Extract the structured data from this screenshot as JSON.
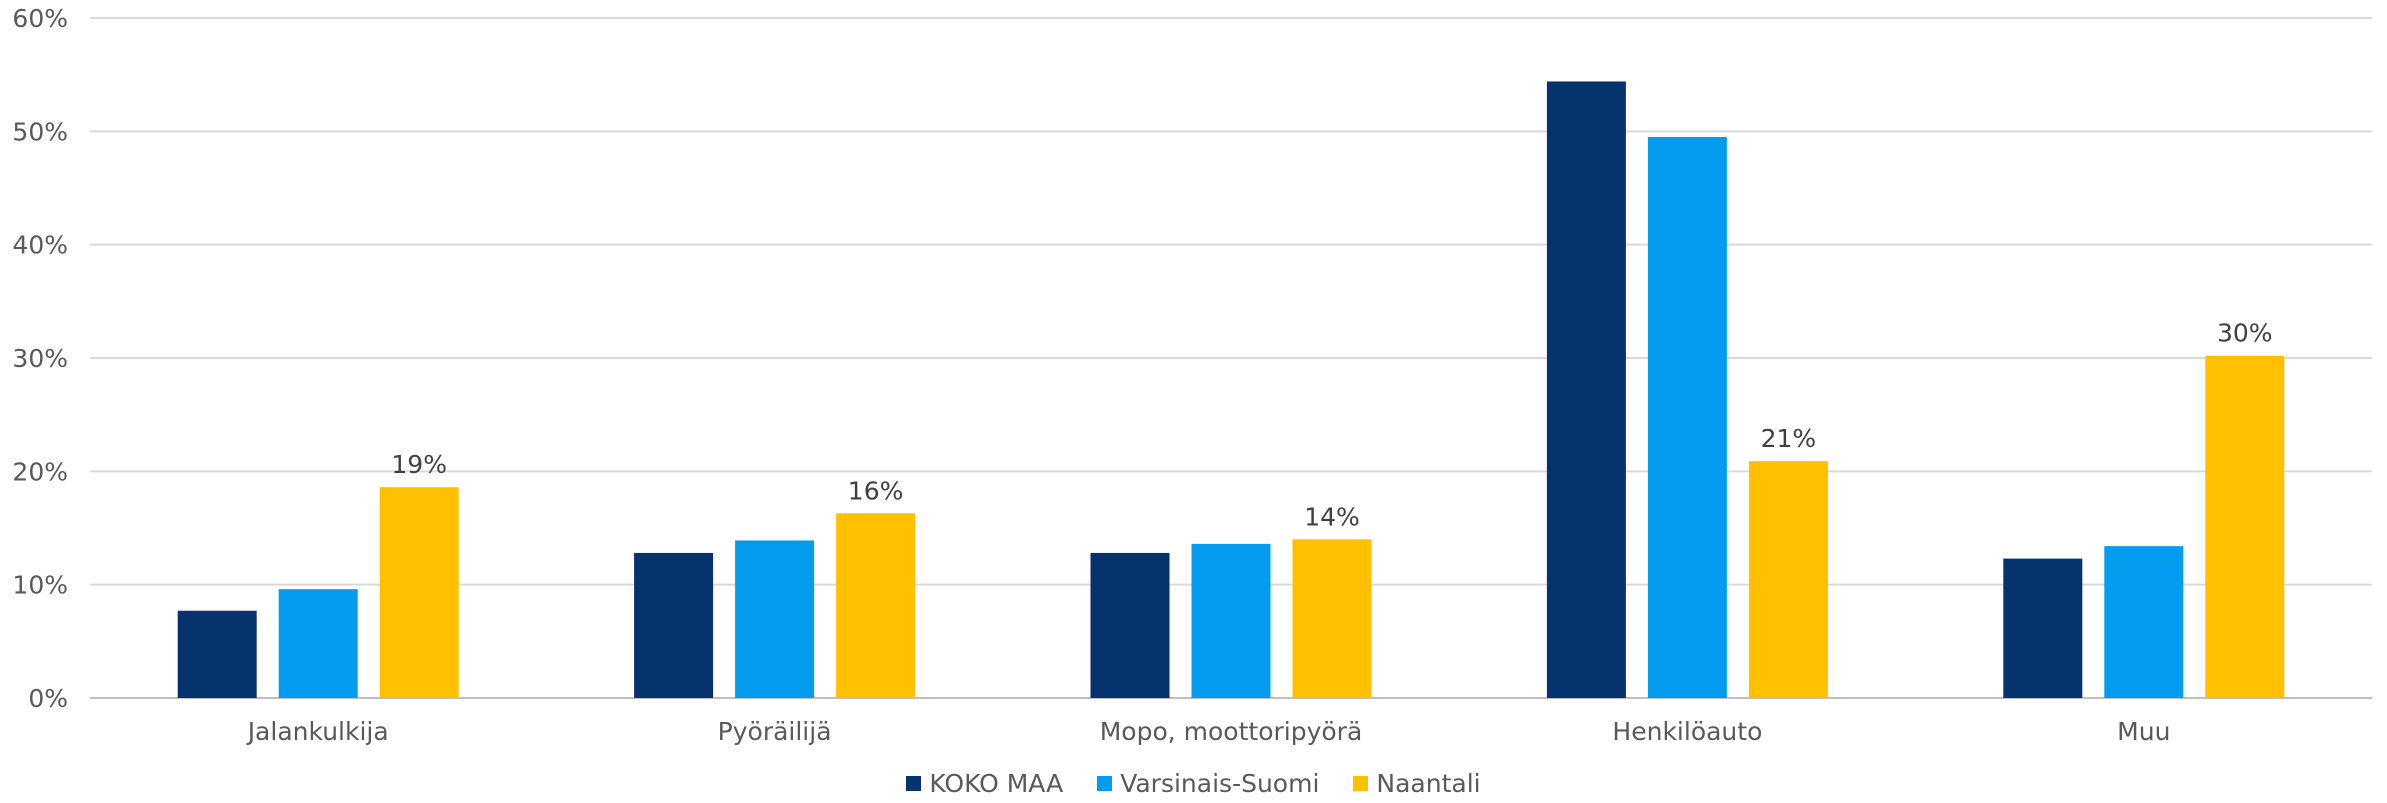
{
  "chart_data": {
    "type": "bar",
    "categories": [
      "Jalankulkija",
      "Pyöräilijä",
      "Mopo, moottoripyörä",
      "Henkilöauto",
      "Muu"
    ],
    "series": [
      {
        "name": "KOKO MAA",
        "color": "#06326e",
        "values": [
          7.7,
          12.8,
          12.8,
          54.4,
          12.3
        ]
      },
      {
        "name": "Varsinais-Suomi",
        "color": "#039cef",
        "values": [
          9.6,
          13.9,
          13.6,
          49.5,
          13.4
        ]
      },
      {
        "name": "Naantali",
        "color": "#ffc000",
        "values": [
          18.6,
          16.3,
          14.0,
          20.9,
          30.2
        ],
        "data_labels": [
          "19%",
          "16%",
          "14%",
          "21%",
          "30%"
        ]
      }
    ],
    "yticks": [
      "0%",
      "10%",
      "20%",
      "30%",
      "40%",
      "50%",
      "60%"
    ],
    "ylim": [
      0,
      60
    ],
    "grid": true,
    "legend_position": "bottom"
  }
}
